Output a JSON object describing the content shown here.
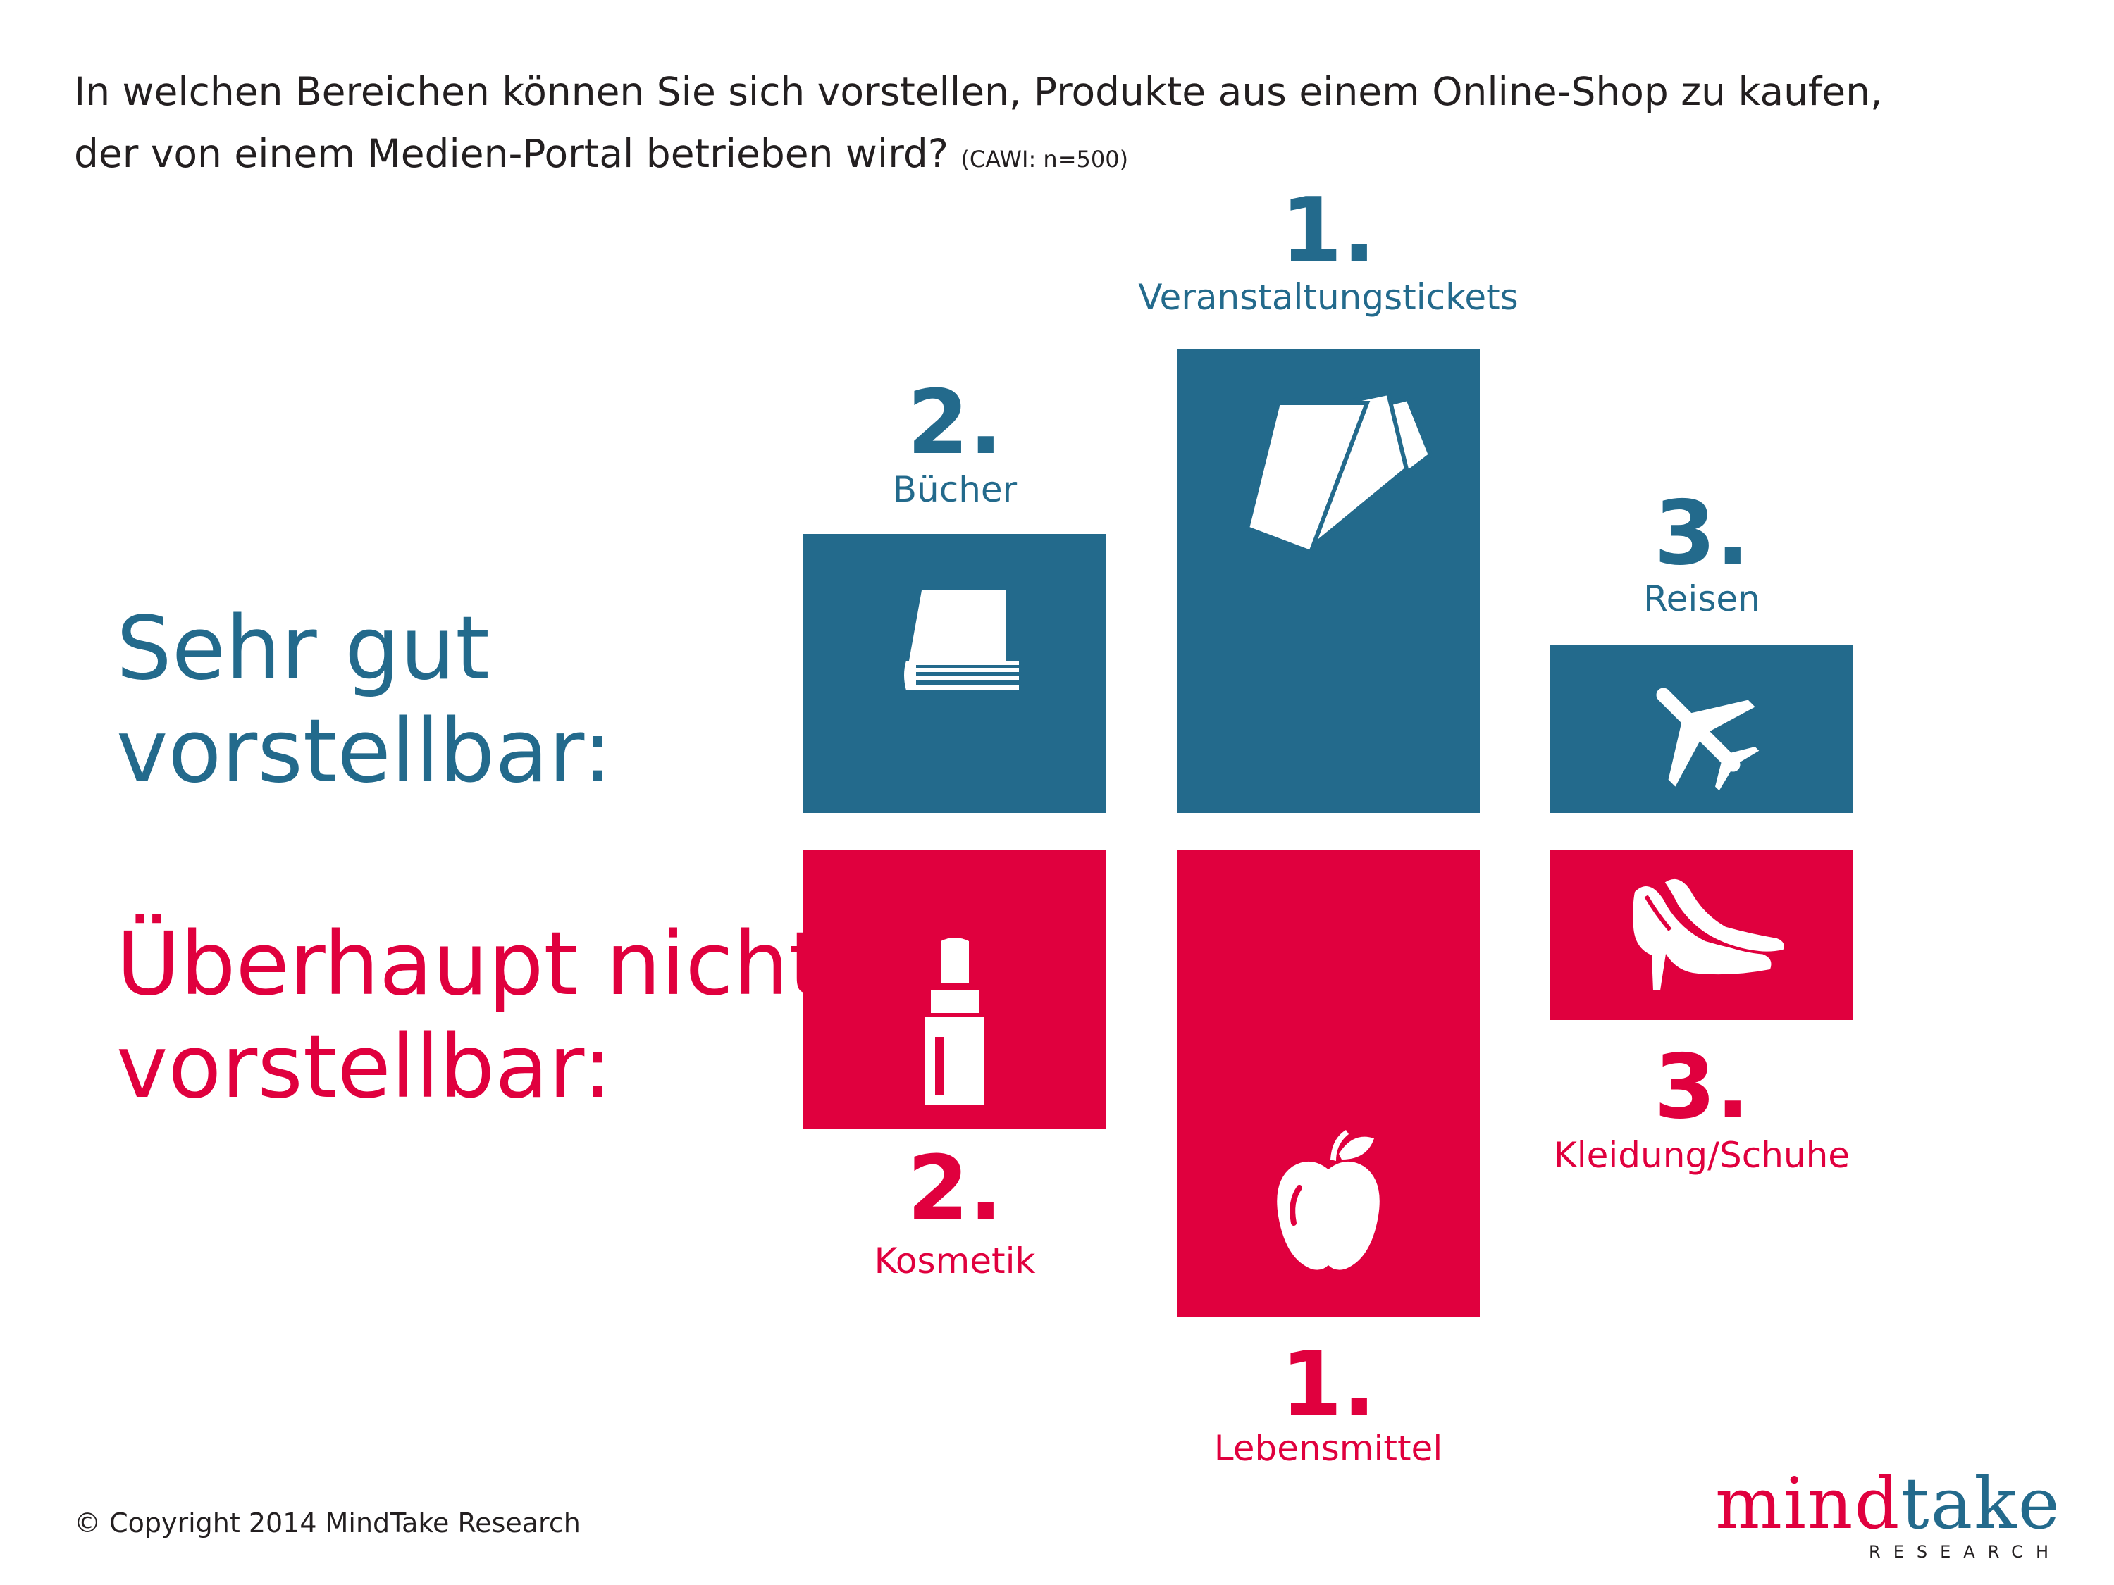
{
  "title": {
    "line1": "In welchen Bereichen können Sie sich vorstellen, Produkte aus einem Online-Shop zu kaufen,",
    "line2": "der von einem Medien-Portal betrieben wird?",
    "note": "(CAWI: n=500)"
  },
  "labels": {
    "positive_line1": "Sehr gut",
    "positive_line2": "vorstellbar:",
    "negative_line1": "Überhaupt nicht",
    "negative_line2": "vorstellbar:"
  },
  "positive": [
    {
      "rank": "1.",
      "category": "Veranstaltungstickets",
      "icon": "tickets-icon"
    },
    {
      "rank": "2.",
      "category": "Bücher",
      "icon": "book-icon"
    },
    {
      "rank": "3.",
      "category": "Reisen",
      "icon": "airplane-icon"
    }
  ],
  "negative": [
    {
      "rank": "1.",
      "category": "Lebensmittel",
      "icon": "apple-icon"
    },
    {
      "rank": "2.",
      "category": "Kosmetik",
      "icon": "lipstick-icon"
    },
    {
      "rank": "3.",
      "category": "Kleidung/Schuhe",
      "icon": "shoes-icon"
    }
  ],
  "footer": {
    "copyright": "© Copyright 2014 MindTake Research",
    "logo_mind": "mind",
    "logo_take": "take",
    "logo_sub": "RESEARCH"
  },
  "colors": {
    "positive": "#236a8c",
    "negative": "#e0003e",
    "text": "#231f20"
  }
}
